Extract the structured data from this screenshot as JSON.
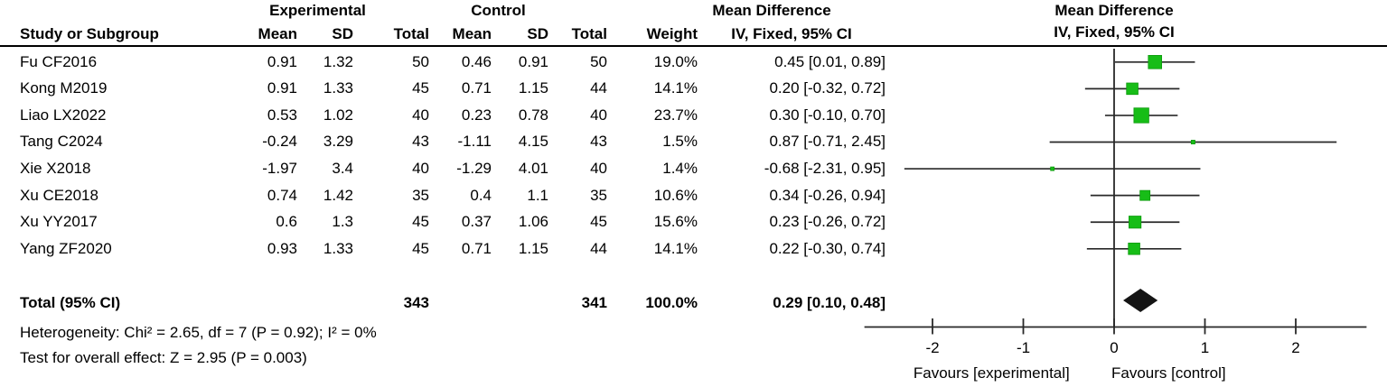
{
  "figure": {
    "headers": {
      "group_experimental": "Experimental",
      "group_control": "Control",
      "md_text_title": "Mean Difference",
      "md_plot_title": "Mean Difference",
      "col_study": "Study or Subgroup",
      "col_mean1": "Mean",
      "col_sd1": "SD",
      "col_total1": "Total",
      "col_mean2": "Mean",
      "col_sd2": "SD",
      "col_total2": "Total",
      "col_weight": "Weight",
      "col_ci": "IV, Fixed, 95% CI",
      "plot_sub": "IV, Fixed, 95% CI"
    },
    "footer": {
      "heterogeneity": "Heterogeneity: Chi² = 2.65, df = 7 (P = 0.92); I² = 0%",
      "overall_effect": "Test for overall effect: Z = 2.95 (P = 0.003)"
    }
  },
  "chart_data": {
    "type": "forest",
    "effect_measure": "Mean Difference, IV, Fixed, 95% CI",
    "studies": [
      {
        "name": "Fu CF2016",
        "exp_mean": "0.91",
        "exp_sd": "1.32",
        "exp_total": "50",
        "ctrl_mean": "0.46",
        "ctrl_sd": "0.91",
        "ctrl_total": "50",
        "weight": "19.0%",
        "ci_text": "0.45 [0.01, 0.89]",
        "est": 0.45,
        "lo": 0.01,
        "hi": 0.89,
        "weight_pct": 19.0
      },
      {
        "name": "Kong M2019",
        "exp_mean": "0.91",
        "exp_sd": "1.33",
        "exp_total": "45",
        "ctrl_mean": "0.71",
        "ctrl_sd": "1.15",
        "ctrl_total": "44",
        "weight": "14.1%",
        "ci_text": "0.20 [-0.32, 0.72]",
        "est": 0.2,
        "lo": -0.32,
        "hi": 0.72,
        "weight_pct": 14.1
      },
      {
        "name": "Liao LX2022",
        "exp_mean": "0.53",
        "exp_sd": "1.02",
        "exp_total": "40",
        "ctrl_mean": "0.23",
        "ctrl_sd": "0.78",
        "ctrl_total": "40",
        "weight": "23.7%",
        "ci_text": "0.30 [-0.10, 0.70]",
        "est": 0.3,
        "lo": -0.1,
        "hi": 0.7,
        "weight_pct": 23.7
      },
      {
        "name": "Tang C2024",
        "exp_mean": "-0.24",
        "exp_sd": "3.29",
        "exp_total": "43",
        "ctrl_mean": "-1.11",
        "ctrl_sd": "4.15",
        "ctrl_total": "43",
        "weight": "1.5%",
        "ci_text": "0.87 [-0.71, 2.45]",
        "est": 0.87,
        "lo": -0.71,
        "hi": 2.45,
        "weight_pct": 1.5
      },
      {
        "name": "Xie X2018",
        "exp_mean": "-1.97",
        "exp_sd": "3.4",
        "exp_total": "40",
        "ctrl_mean": "-1.29",
        "ctrl_sd": "4.01",
        "ctrl_total": "40",
        "weight": "1.4%",
        "ci_text": "-0.68 [-2.31, 0.95]",
        "est": -0.68,
        "lo": -2.31,
        "hi": 0.95,
        "weight_pct": 1.4
      },
      {
        "name": "Xu CE2018",
        "exp_mean": "0.74",
        "exp_sd": "1.42",
        "exp_total": "35",
        "ctrl_mean": "0.4",
        "ctrl_sd": "1.1",
        "ctrl_total": "35",
        "weight": "10.6%",
        "ci_text": "0.34 [-0.26, 0.94]",
        "est": 0.34,
        "lo": -0.26,
        "hi": 0.94,
        "weight_pct": 10.6
      },
      {
        "name": "Xu YY2017",
        "exp_mean": "0.6",
        "exp_sd": "1.3",
        "exp_total": "45",
        "ctrl_mean": "0.37",
        "ctrl_sd": "1.06",
        "ctrl_total": "45",
        "weight": "15.6%",
        "ci_text": "0.23 [-0.26, 0.72]",
        "est": 0.23,
        "lo": -0.26,
        "hi": 0.72,
        "weight_pct": 15.6
      },
      {
        "name": "Yang ZF2020",
        "exp_mean": "0.93",
        "exp_sd": "1.33",
        "exp_total": "45",
        "ctrl_mean": "0.71",
        "ctrl_sd": "1.15",
        "ctrl_total": "44",
        "weight": "14.1%",
        "ci_text": "0.22 [-0.30, 0.74]",
        "est": 0.22,
        "lo": -0.3,
        "hi": 0.74,
        "weight_pct": 14.1
      }
    ],
    "total": {
      "label": "Total (95% CI)",
      "exp_total": "343",
      "ctrl_total": "341",
      "weight": "100.0%",
      "ci_text": "0.29 [0.10, 0.48]",
      "est": 0.29,
      "lo": 0.1,
      "hi": 0.48
    },
    "axis": {
      "min": -2.75,
      "max": 2.78,
      "ticks": [
        -2,
        -1,
        0,
        1,
        2
      ],
      "favours_left": "Favours [experimental]",
      "favours_right": "Favours [control]"
    },
    "colors": {
      "square": "#17bd17",
      "square_border": "#0d9a0d",
      "diamond": "#141414",
      "line": "#282828",
      "text": "#000000"
    }
  }
}
